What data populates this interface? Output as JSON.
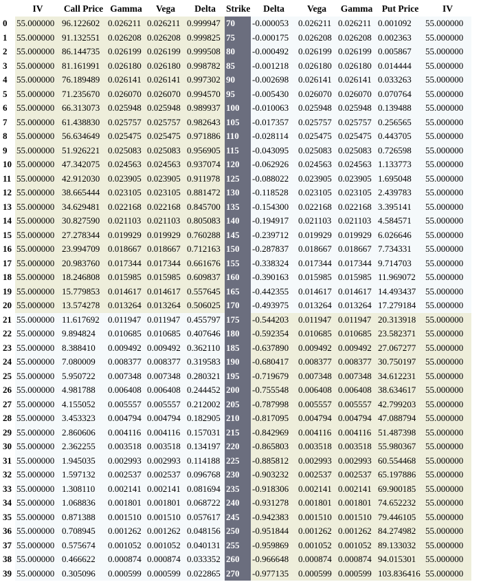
{
  "table": {
    "header": [
      "IV",
      "Call Price",
      "Gamma",
      "Vega",
      "Delta",
      "Strike",
      "Delta",
      "Vega",
      "Gamma",
      "Put Price",
      "IV"
    ],
    "rows": [
      [
        "0",
        "55.000000",
        "96.122602",
        "0.026211",
        "0.026211",
        "0.999947",
        "70",
        "-0.000053",
        "0.026211",
        "0.026211",
        "0.001092",
        "55.000000"
      ],
      [
        "1",
        "55.000000",
        "91.132551",
        "0.026208",
        "0.026208",
        "0.999825",
        "75",
        "-0.000175",
        "0.026208",
        "0.026208",
        "0.002363",
        "55.000000"
      ],
      [
        "2",
        "55.000000",
        "86.144735",
        "0.026199",
        "0.026199",
        "0.999508",
        "80",
        "-0.000492",
        "0.026199",
        "0.026199",
        "0.005867",
        "55.000000"
      ],
      [
        "3",
        "55.000000",
        "81.161991",
        "0.026180",
        "0.026180",
        "0.998782",
        "85",
        "-0.001218",
        "0.026180",
        "0.026180",
        "0.014444",
        "55.000000"
      ],
      [
        "4",
        "55.000000",
        "76.189489",
        "0.026141",
        "0.026141",
        "0.997302",
        "90",
        "-0.002698",
        "0.026141",
        "0.026141",
        "0.033263",
        "55.000000"
      ],
      [
        "5",
        "55.000000",
        "71.235670",
        "0.026070",
        "0.026070",
        "0.994570",
        "95",
        "-0.005430",
        "0.026070",
        "0.026070",
        "0.070764",
        "55.000000"
      ],
      [
        "6",
        "55.000000",
        "66.313073",
        "0.025948",
        "0.025948",
        "0.989937",
        "100",
        "-0.010063",
        "0.025948",
        "0.025948",
        "0.139488",
        "55.000000"
      ],
      [
        "7",
        "55.000000",
        "61.438830",
        "0.025757",
        "0.025757",
        "0.982643",
        "105",
        "-0.017357",
        "0.025757",
        "0.025757",
        "0.256565",
        "55.000000"
      ],
      [
        "8",
        "55.000000",
        "56.634649",
        "0.025475",
        "0.025475",
        "0.971886",
        "110",
        "-0.028114",
        "0.025475",
        "0.025475",
        "0.443705",
        "55.000000"
      ],
      [
        "9",
        "55.000000",
        "51.926221",
        "0.025083",
        "0.025083",
        "0.956905",
        "115",
        "-0.043095",
        "0.025083",
        "0.025083",
        "0.726598",
        "55.000000"
      ],
      [
        "10",
        "55.000000",
        "47.342075",
        "0.024563",
        "0.024563",
        "0.937074",
        "120",
        "-0.062926",
        "0.024563",
        "0.024563",
        "1.133773",
        "55.000000"
      ],
      [
        "11",
        "55.000000",
        "42.912030",
        "0.023905",
        "0.023905",
        "0.911978",
        "125",
        "-0.088022",
        "0.023905",
        "0.023905",
        "1.695048",
        "55.000000"
      ],
      [
        "12",
        "55.000000",
        "38.665444",
        "0.023105",
        "0.023105",
        "0.881472",
        "130",
        "-0.118528",
        "0.023105",
        "0.023105",
        "2.439783",
        "55.000000"
      ],
      [
        "13",
        "55.000000",
        "34.629481",
        "0.022168",
        "0.022168",
        "0.845700",
        "135",
        "-0.154300",
        "0.022168",
        "0.022168",
        "3.395141",
        "55.000000"
      ],
      [
        "14",
        "55.000000",
        "30.827590",
        "0.021103",
        "0.021103",
        "0.805083",
        "140",
        "-0.194917",
        "0.021103",
        "0.021103",
        "4.584571",
        "55.000000"
      ],
      [
        "15",
        "55.000000",
        "27.278344",
        "0.019929",
        "0.019929",
        "0.760288",
        "145",
        "-0.239712",
        "0.019929",
        "0.019929",
        "6.026646",
        "55.000000"
      ],
      [
        "16",
        "55.000000",
        "23.994709",
        "0.018667",
        "0.018667",
        "0.712163",
        "150",
        "-0.287837",
        "0.018667",
        "0.018667",
        "7.734331",
        "55.000000"
      ],
      [
        "17",
        "55.000000",
        "20.983760",
        "0.017344",
        "0.017344",
        "0.661676",
        "155",
        "-0.338324",
        "0.017344",
        "0.017344",
        "9.714703",
        "55.000000"
      ],
      [
        "18",
        "55.000000",
        "18.246808",
        "0.015985",
        "0.015985",
        "0.609837",
        "160",
        "-0.390163",
        "0.015985",
        "0.015985",
        "11.969072",
        "55.000000"
      ],
      [
        "19",
        "55.000000",
        "15.779853",
        "0.014617",
        "0.014617",
        "0.557645",
        "165",
        "-0.442355",
        "0.014617",
        "0.014617",
        "14.493437",
        "55.000000"
      ],
      [
        "20",
        "55.000000",
        "13.574278",
        "0.013264",
        "0.013264",
        "0.506025",
        "170",
        "-0.493975",
        "0.013264",
        "0.013264",
        "17.279184",
        "55.000000"
      ],
      [
        "21",
        "55.000000",
        "11.617692",
        "0.011947",
        "0.011947",
        "0.455797",
        "175",
        "-0.544203",
        "0.011947",
        "0.011947",
        "20.313918",
        "55.000000"
      ],
      [
        "22",
        "55.000000",
        "9.894824",
        "0.010685",
        "0.010685",
        "0.407646",
        "180",
        "-0.592354",
        "0.010685",
        "0.010685",
        "23.582371",
        "55.000000"
      ],
      [
        "23",
        "55.000000",
        "8.388410",
        "0.009492",
        "0.009492",
        "0.362110",
        "185",
        "-0.637890",
        "0.009492",
        "0.009492",
        "27.067277",
        "55.000000"
      ],
      [
        "24",
        "55.000000",
        "7.080009",
        "0.008377",
        "0.008377",
        "0.319583",
        "190",
        "-0.680417",
        "0.008377",
        "0.008377",
        "30.750197",
        "55.000000"
      ],
      [
        "25",
        "55.000000",
        "5.950722",
        "0.007348",
        "0.007348",
        "0.280321",
        "195",
        "-0.719679",
        "0.007348",
        "0.007348",
        "34.612231",
        "55.000000"
      ],
      [
        "26",
        "55.000000",
        "4.981788",
        "0.006408",
        "0.006408",
        "0.244452",
        "200",
        "-0.755548",
        "0.006408",
        "0.006408",
        "38.634617",
        "55.000000"
      ],
      [
        "27",
        "55.000000",
        "4.155052",
        "0.005557",
        "0.005557",
        "0.212002",
        "205",
        "-0.787998",
        "0.005557",
        "0.005557",
        "42.799203",
        "55.000000"
      ],
      [
        "28",
        "55.000000",
        "3.453323",
        "0.004794",
        "0.004794",
        "0.182905",
        "210",
        "-0.817095",
        "0.004794",
        "0.004794",
        "47.088794",
        "55.000000"
      ],
      [
        "29",
        "55.000000",
        "2.860606",
        "0.004116",
        "0.004116",
        "0.157031",
        "215",
        "-0.842969",
        "0.004116",
        "0.004116",
        "51.487398",
        "55.000000"
      ],
      [
        "30",
        "55.000000",
        "2.362255",
        "0.003518",
        "0.003518",
        "0.134197",
        "220",
        "-0.865803",
        "0.003518",
        "0.003518",
        "55.980367",
        "55.000000"
      ],
      [
        "31",
        "55.000000",
        "1.945035",
        "0.002993",
        "0.002993",
        "0.114188",
        "225",
        "-0.885812",
        "0.002993",
        "0.002993",
        "60.554468",
        "55.000000"
      ],
      [
        "32",
        "55.000000",
        "1.597132",
        "0.002537",
        "0.002537",
        "0.096768",
        "230",
        "-0.903232",
        "0.002537",
        "0.002537",
        "65.197886",
        "55.000000"
      ],
      [
        "33",
        "55.000000",
        "1.308110",
        "0.002141",
        "0.002141",
        "0.081694",
        "235",
        "-0.918306",
        "0.002141",
        "0.002141",
        "69.900185",
        "55.000000"
      ],
      [
        "34",
        "55.000000",
        "1.068836",
        "0.001801",
        "0.001801",
        "0.068722",
        "240",
        "-0.931278",
        "0.001801",
        "0.001801",
        "74.652232",
        "55.000000"
      ],
      [
        "35",
        "55.000000",
        "0.871388",
        "0.001510",
        "0.001510",
        "0.057617",
        "245",
        "-0.942383",
        "0.001510",
        "0.001510",
        "79.446105",
        "55.000000"
      ],
      [
        "36",
        "55.000000",
        "0.708945",
        "0.001262",
        "0.001262",
        "0.048156",
        "250",
        "-0.951844",
        "0.001262",
        "0.001262",
        "84.274982",
        "55.000000"
      ],
      [
        "37",
        "55.000000",
        "0.575674",
        "0.001052",
        "0.001052",
        "0.040131",
        "255",
        "-0.959869",
        "0.001052",
        "0.001052",
        "89.133032",
        "55.000000"
      ],
      [
        "38",
        "55.000000",
        "0.466622",
        "0.000874",
        "0.000874",
        "0.033352",
        "260",
        "-0.966648",
        "0.000874",
        "0.000874",
        "94.015301",
        "55.000000"
      ],
      [
        "39",
        "55.000000",
        "0.305096",
        "0.000599",
        "0.000599",
        "0.022865",
        "270",
        "-0.977135",
        "0.000599",
        "0.000599",
        "103.836416",
        "55.000000"
      ]
    ]
  }
}
